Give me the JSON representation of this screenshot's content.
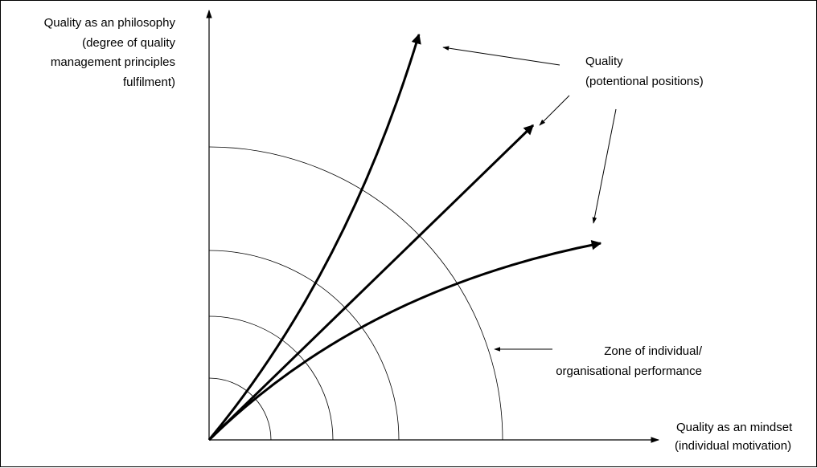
{
  "labels": {
    "y_axis": [
      "Quality as an philosophy",
      "(degree of quality",
      "management principles",
      "fulfilment)"
    ],
    "x_axis": [
      "Quality as an mindset",
      "(individual motivation)"
    ],
    "quality_note": [
      "Quality",
      "(potentional positions)"
    ],
    "zone_note": [
      "Zone of individual/",
      "organisational performance"
    ]
  },
  "colors": {
    "line": "#000000",
    "background": "#ffffff"
  }
}
